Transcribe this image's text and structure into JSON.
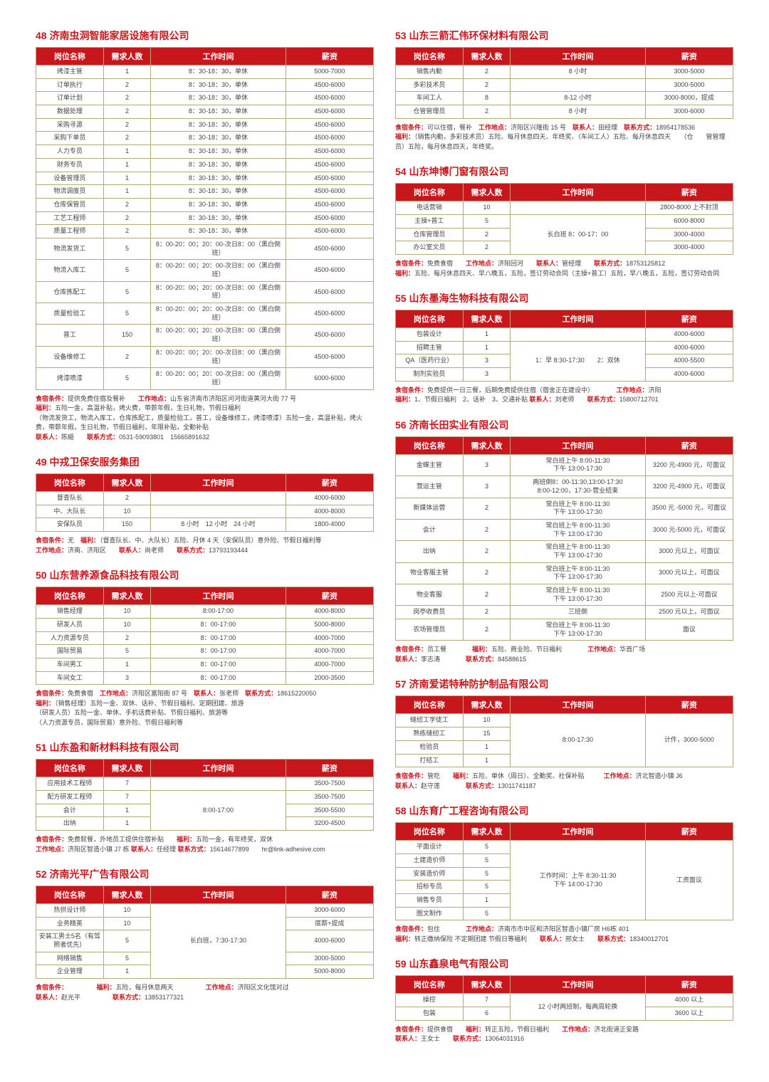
{
  "labels": {
    "header_pos": "岗位名称",
    "header_num": "需求人数",
    "header_time": "工作时间",
    "header_salary": "薪资",
    "food": "食宿条件：",
    "welfare": "福利：",
    "location": "工作地点：",
    "contact": "联系人：",
    "phone": "联系方式："
  },
  "companies": [
    {
      "col": 0,
      "id": "48 济南虫洞智能家居设施有限公司",
      "rows": [
        [
          "烤漆主管",
          "1",
          "8：30-18：30，单休",
          "5000-7000"
        ],
        [
          "订单执行",
          "2",
          "8：30-18：30，单休",
          "4500-6000"
        ],
        [
          "订单计划",
          "2",
          "8：30-18：30，单休",
          "4500-6000"
        ],
        [
          "数据处理",
          "2",
          "8：30-18：30，单休",
          "4500-6000"
        ],
        [
          "采购寻源",
          "2",
          "8：30-18：30，单休",
          "4500-6000"
        ],
        [
          "采购下单员",
          "2",
          "8：30-18：30，单休",
          "4500-6000"
        ],
        [
          "人力专员",
          "1",
          "8：30-18：30，单休",
          "4500-6000"
        ],
        [
          "财务专员",
          "1",
          "8：30-18：30，单休",
          "4500-6000"
        ],
        [
          "设备管理员",
          "1",
          "8：30-18：30，单休",
          "4500-6000"
        ],
        [
          "物流调度员",
          "1",
          "8：30-18：30，单休",
          "4500-6000"
        ],
        [
          "仓库保管员",
          "2",
          "8：30-18：30，单休",
          "4500-6000"
        ],
        [
          "工艺工程师",
          "2",
          "8：30-18：30，单休",
          "4500-6000"
        ],
        [
          "质量工程师",
          "2",
          "8：30-18：30，单休",
          "4500-6000"
        ],
        [
          "物流发货工",
          "5",
          "8：00-20：00；20：00-次日8：00（黑白倒班）",
          "4500-6000"
        ],
        [
          "物流入库工",
          "5",
          "8：00-20：00；20：00-次日8：00（黑白倒班）",
          "4500-6000"
        ],
        [
          "仓库拣配工",
          "5",
          "8：00-20：00；20：00-次日8：00（黑白倒班）",
          "4500-6000"
        ],
        [
          "质量检验工",
          "5",
          "8：00-20：00；20：00-次日8：00（黑白倒班）",
          "4500-6000"
        ],
        [
          "普工",
          "150",
          "8：00-20：00；20：00-次日8：00（黑白倒班）",
          "4500-6000"
        ],
        [
          "设备维修工",
          "2",
          "8：00-20：00；20：00-次日8：00（黑白倒班）",
          "4500-6000"
        ],
        [
          "烤漆喷漆",
          "5",
          "8：00-20：00；20：00-次日8：00（黑白倒班）",
          "6000-6000"
        ]
      ],
      "info": [
        [
          "食宿条件：",
          "提供免费住宿及餐补　　<b>工作地点：</b>山东省济南市济阳区问河街道黄河大街 77 号"
        ],
        [
          "福利：",
          "五险一金，高温补贴，烤火费，带薪年假，生日礼物，节假日福利"
        ],
        [
          "",
          "（物流发货工，物流入库工，仓库拣配工，质量检验工，普工，设备维修工，烤漆喷漆）五险一金，高温补贴，烤火费，带薪年假，生日礼物，节假日福利，年限补贴，全勤补贴"
        ],
        [
          "联系人：",
          "陈䋗　　<b>联系方式：</b>0531-59093801　15665891632"
        ]
      ]
    },
    {
      "col": 0,
      "id": "49 中戎卫保安服务集团",
      "rows_span": [
        {
          "cells": [
            "督查队长",
            "2",
            "",
            "4000-6000"
          ]
        },
        {
          "cells": [
            "中、大队长",
            "10",
            "",
            "4000-8000"
          ]
        },
        {
          "cells": [
            "安保队员",
            "150",
            "8 小时　12 小时　24 小时",
            "1800-4000"
          ]
        }
      ],
      "info": [
        [
          "食宿条件：",
          "无　<b>福利：</b>（督查队长、中、大队长）五险、月休 4 天（安保队员）意外险、节假日福利等"
        ],
        [
          "工作地点：",
          "济南、济阳区　　<b>联系人：</b>尚老师　　<b>联系方式：</b>13793193444"
        ]
      ]
    },
    {
      "col": 0,
      "id": "50 山东营养源食品科技有限公司",
      "rows": [
        [
          "销售经理",
          "10",
          "8:00-17:00",
          "4000-8000"
        ],
        [
          "研发人员",
          "10",
          "8：00-17:00",
          "5000-8000"
        ],
        [
          "人力资源专员",
          "2",
          "8：00-17:00",
          "4000-7000"
        ],
        [
          "国际贸易",
          "5",
          "8：00-17:00",
          "4000-7000"
        ],
        [
          "车间男工",
          "1",
          "8：00-17:00",
          "4000-7000"
        ],
        [
          "车间女工",
          "3",
          "8：00-17:00",
          "2000-3500"
        ]
      ],
      "info": [
        [
          "食宿条件：",
          "免费食宿　<b>工作地点：</b>济阳区富阳街 87 号　<b>联系人：</b>张老师　<b>联系方式：</b>18615220050"
        ],
        [
          "福利：",
          "（销售经理）五险一金、双休、话补、节假日福利、定期团建、旅游"
        ],
        [
          "",
          "（研发人员）五险一金、单休、手机话费补贴、节假日福利、旅游等"
        ],
        [
          "",
          "（人力资源专员，国际贸易）意外险、节假日福利等"
        ]
      ]
    },
    {
      "col": 0,
      "id": "51 山东盈和新材料科技有限公司",
      "rows_span": [
        {
          "cells": [
            "应用技术工程师",
            "7",
            "",
            "3500-7500"
          ],
          "merge_time": 0
        },
        {
          "cells": [
            "配方研发工程师",
            "7",
            "8:00-17:00",
            "3500-7500"
          ],
          "rowspan_time": 3
        },
        {
          "cells": [
            "会计",
            "1",
            null,
            "3500-5500"
          ]
        },
        {
          "cells": [
            "出纳",
            "1",
            null,
            "3200-4500"
          ]
        }
      ],
      "info": [
        [
          "食宿条件：",
          "免费就餐，外地员工提供住宿补贴　　<b>福利：</b>五险一金，有年终奖，双休"
        ],
        [
          "工作地点：",
          "济阳区智造小镇 J7 栋 <b>联系人：</b>任经理 <b>联系方式：</b>15614677899　　hr@link-adhesive.com"
        ]
      ]
    },
    {
      "col": 0,
      "id": "52 济南光平广告有限公司",
      "rows_span": [
        {
          "cells": [
            "热供设计师",
            "10",
            "",
            "3000-6000"
          ],
          "rowspan_time": 5,
          "time_text": "长白班，7:30-17:30"
        },
        {
          "cells": [
            "业务精英",
            "10",
            null,
            "底薪+提成"
          ]
        },
        {
          "cells": [
            "安装工男士5名（有驾照者优先）",
            "5",
            null,
            "4000-6000"
          ]
        },
        {
          "cells": [
            "网络销售",
            "5",
            null,
            "3000-5000"
          ]
        },
        {
          "cells": [
            "企业管理",
            "1",
            null,
            "5000-8000"
          ]
        }
      ],
      "info": [
        [
          "食宿条件：",
          "　　　　　<b>福利：</b>五险，每月休息两天　　　　　<b>工作地点：</b>济阳区文化馆对过"
        ],
        [
          "联系人：",
          "赵光平　　　　　<b>联系方式：</b>13853177321"
        ]
      ]
    },
    {
      "col": 1,
      "id": "53 山东三箭汇伟环保材料有限公司",
      "rows": [
        [
          "销售内勤",
          "2",
          "8 小时",
          "3000-5000"
        ],
        [
          "多彩技术员",
          "2",
          "",
          "3000-5000"
        ],
        [
          "车间工人",
          "8",
          "8-12 小时",
          "3000-8000，提成"
        ],
        [
          "仓管管理员",
          "2",
          "8 小时",
          "3000-6000"
        ]
      ],
      "info": [
        [
          "食宿条件：",
          "可以住宿，餐补　<b>工作地点：</b>济阳区兴隆街 15 号　<b>联系人：</b>田经理　<b>联系方式：</b>18954178536"
        ],
        [
          "福利：",
          "（销售内勤，多彩技术员）五险、每月休息四天、年终奖、（车间工人）五险、每月休息四天　　（仓　　管管理员）五险，每月休息四天，年终奖。"
        ]
      ]
    },
    {
      "col": 1,
      "id": "54 山东坤博门窗有限公司",
      "rows_span": [
        {
          "cells": [
            "电话营销",
            "10",
            "",
            "2800-8000 上不封顶"
          ]
        },
        {
          "cells": [
            "主操+普工",
            "5",
            "长白班 8：00-17：00",
            "6000-8000"
          ],
          "rowspan_time": 3
        },
        {
          "cells": [
            "仓库管理员",
            "2",
            null,
            "3000-4000"
          ]
        },
        {
          "cells": [
            "办公室文员",
            "2",
            null,
            "3000-4000"
          ]
        }
      ],
      "info": [
        [
          "食宿条件：",
          "免费食宿　　<b>工作地点：</b>济阳回河　　<b>联系人：</b>管经理　　<b>联系方式：</b>18753125812"
        ],
        [
          "福利：",
          "五险、每月休息四天、早八晚五，五险，签订劳动合同（主操+普工）五险，早八晚五，五险，签订劳动合同"
        ]
      ]
    },
    {
      "col": 1,
      "id": "55 山东墨海生物科技有限公司",
      "rows_span": [
        {
          "cells": [
            "包装设计",
            "1",
            "",
            "4000-6000"
          ]
        },
        {
          "cells": [
            "招聘主管",
            "1",
            "1：早 8:30-17:30　　2：双休",
            "4000-6000"
          ],
          "rowspan_time": 3
        },
        {
          "cells": [
            "QA（医药行业）",
            "3",
            null,
            "4000-5500"
          ]
        },
        {
          "cells": [
            "制剂实验员",
            "3",
            null,
            "4000-6000"
          ]
        }
      ],
      "info": [
        [
          "食宿条件：",
          "免费提供一日三餐，后期免费提供住宿（宿舍正在建设中）　　　　<b>工作地点：</b>济阳"
        ],
        [
          "福利：",
          "1、节假日福利　2、话补　3、交通补贴 <b>联系人：</b>刘老师　　<b>联系方式：</b>15800712701"
        ]
      ]
    },
    {
      "col": 1,
      "id": "56 济南长田实业有限公司",
      "rows": [
        [
          "金蝶主管",
          "3",
          "常白班上午 8:00-11:30\n下午 13:00-17:30",
          "3200 元-4900 元，可面议"
        ],
        [
          "营运主管",
          "3",
          "两班倒8：00-11:30,13:00-17:30\n8:00-12:00，17:30-营业结束",
          "3200 元-4900 元，可面议"
        ],
        [
          "新媒体运营",
          "2",
          "常白班上午 8:00-11:30\n下午 13:00-17:30",
          "3500 元 -5000 元，可面议"
        ],
        [
          "会计",
          "2",
          "常白班上午 8:00-11:30\n下午 13:00-17:30",
          "3000 元-5000 元，可面议"
        ],
        [
          "出纳",
          "2",
          "常白班上午 8:00-11:30\n下午 13:00-17:30",
          "3000 元以上，可面议"
        ],
        [
          "物业客服主管",
          "2",
          "常白班上午 8:00-11:30\n下午 13:00-17:30",
          "3000 元以上，可面议"
        ],
        [
          "物业客服",
          "2",
          "常白班上午 8:00-11:30\n下午 13:00-17:30",
          "2500 元以上-可面议"
        ],
        [
          "岗亭收费员",
          "2",
          "三班倒",
          "2500 元以上，可面议"
        ],
        [
          "农场管理员",
          "2",
          "常白班上午 8:00-11:30\n下午 13:00-17:30",
          "面议"
        ]
      ],
      "info": [
        [
          "食宿条件：",
          "员工餐　　　　<b>福利：</b>五险、商业险、节日福利　　　　<b>工作地点：</b>华首广场"
        ],
        [
          "联系人：",
          "李志涛　　　　<b>联系方式：</b>84588615"
        ]
      ]
    },
    {
      "col": 1,
      "id": "57 济南爱诺特种防护制品有限公司",
      "rows_span": [
        {
          "cells": [
            "缝纫工学徒工",
            "10",
            "",
            "计件，3000-5000"
          ],
          "rowspan_sal": 4,
          "rowspan_time": 4,
          "time_text": "8:00-17:30"
        },
        {
          "cells": [
            "熟练缝纫工",
            "15",
            null,
            null
          ]
        },
        {
          "cells": [
            "检验员",
            "1",
            null,
            null
          ]
        },
        {
          "cells": [
            "打结工",
            "1",
            null,
            null
          ]
        }
      ],
      "info": [
        [
          "食宿条件：",
          "管吃　　<b>福利：</b>五险、单休（周日）、全勤奖、社保补贴　　　<b>工作地点：</b>济北智造小镇 J6"
        ],
        [
          "联系人：",
          "赵守莲　　　　<b>联系方式：</b>13011741187"
        ]
      ]
    },
    {
      "col": 1,
      "id": "58 山东育广工程咨询有限公司",
      "rows_span": [
        {
          "cells": [
            "平面设计",
            "5",
            "",
            "工资面议"
          ],
          "rowspan_sal": 6,
          "rowspan_time": 6,
          "time_text": "工作时间：上午 8:30-11:30\n下午 14:00-17:30"
        },
        {
          "cells": [
            "土建造价师",
            "5",
            null,
            null
          ]
        },
        {
          "cells": [
            "安装造价师",
            "5",
            null,
            null
          ]
        },
        {
          "cells": [
            "招标专员",
            "5",
            null,
            null
          ]
        },
        {
          "cells": [
            "销售专员",
            "1",
            null,
            null
          ]
        },
        {
          "cells": [
            "图文制作",
            "5",
            null,
            null
          ]
        }
      ],
      "info": [
        [
          "食宿条件：",
          "包住　　　　<b>工作地点：</b>济南市市中区和济阳区智造小镇厂房 H6栋 401"
        ],
        [
          "福利：",
          "转正缴纳保险 不定期团建 节假日等福利　　<b>联系人：</b>邢女士　　<b>联系方式：</b>18340012701"
        ]
      ]
    },
    {
      "col": 1,
      "id": "59 山东鑫泉电气有限公司",
      "rows_span": [
        {
          "cells": [
            "操控",
            "7",
            "12 小时两班制，每两周轮换",
            "4000 以上"
          ],
          "rowspan_time": 2
        },
        {
          "cells": [
            "包装",
            "6",
            null,
            "3600 以上"
          ]
        }
      ],
      "info": [
        [
          "食宿条件：",
          "提供食宿　　<b>福利：</b>转正五险，节假日福利　　<b>工作地点：</b>济北街道正安路"
        ],
        [
          "联系人：",
          "王女士　　<b>联系方式：</b>13064031916"
        ]
      ]
    }
  ]
}
